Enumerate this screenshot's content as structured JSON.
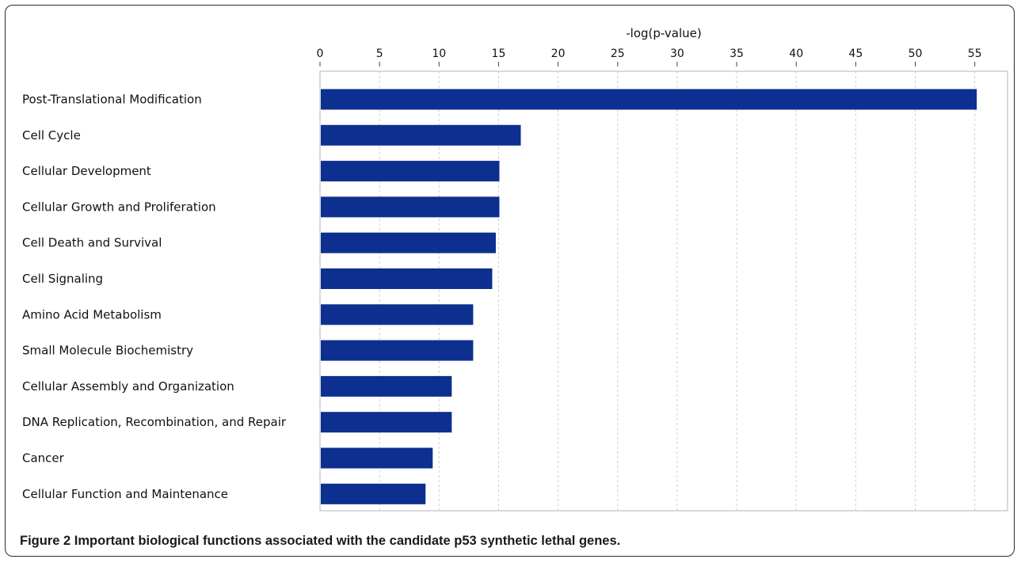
{
  "chart_data": {
    "type": "bar",
    "orientation": "horizontal",
    "xlabel": "-log(p-value)",
    "xlim": [
      0,
      58
    ],
    "ticks": [
      0,
      5,
      10,
      15,
      20,
      25,
      30,
      35,
      40,
      45,
      50,
      55
    ],
    "tick_position": "top",
    "grid": "vertical dashed",
    "bar_color": "#0d2f8f",
    "categories": [
      "Post-Translational Modification",
      "Cell Cycle",
      "Cellular Development",
      "Cellular Growth and Proliferation",
      "Cell Death and Survival",
      "Cell Signaling",
      "Amino Acid Metabolism",
      "Small Molecule Biochemistry",
      "Cellular Assembly and Organization",
      "DNA Replication, Recombination, and Repair",
      "Cancer",
      "Cellular Function and Maintenance"
    ],
    "values": [
      55.1,
      16.8,
      15.0,
      15.0,
      14.7,
      14.4,
      12.8,
      12.8,
      11.0,
      11.0,
      9.4,
      8.8
    ]
  },
  "caption": {
    "label": "Figure 2",
    "text": "Important biological functions associated with the candidate p53 synthetic lethal genes."
  }
}
